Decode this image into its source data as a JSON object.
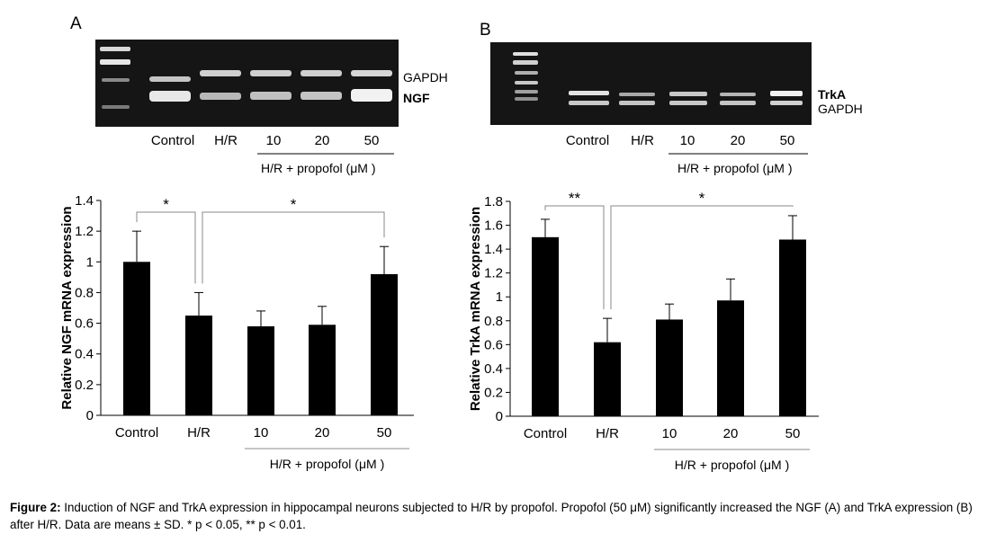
{
  "panels": [
    {
      "letter": "A",
      "gel": {
        "lanes": [
          "Control",
          "H/R",
          "10",
          "20",
          "50"
        ],
        "group_label": "H/R + propofol (μM  )",
        "bands": [
          {
            "label": "GAPDH",
            "bold": false
          },
          {
            "label": "NGF",
            "bold": true
          }
        ]
      },
      "chart_data": {
        "type": "bar",
        "categories": [
          "Control",
          "H/R",
          "10",
          "20",
          "50"
        ],
        "values": [
          1.0,
          0.65,
          0.58,
          0.59,
          0.92
        ],
        "errors": [
          0.2,
          0.15,
          0.1,
          0.12,
          0.18
        ],
        "ylabel": "Relative NGF mRNA expression",
        "ylim": [
          0,
          1.4
        ],
        "yticks": [
          "0",
          "0.2",
          "0.4",
          "0.6",
          "0.8",
          "1",
          "1.2",
          "1.4"
        ],
        "group_label": "H/R + propofol (μM )",
        "significance": [
          {
            "from": "Control",
            "to": "H/R",
            "label": "*"
          },
          {
            "from": "H/R",
            "to": "50",
            "label": "*"
          }
        ]
      }
    },
    {
      "letter": "B",
      "gel": {
        "lanes": [
          "Control",
          "H/R",
          "10",
          "20",
          "50"
        ],
        "group_label": "H/R + propofol (μM  )",
        "bands": [
          {
            "label": "TrkA",
            "bold": true
          },
          {
            "label": "GAPDH",
            "bold": false
          }
        ]
      },
      "chart_data": {
        "type": "bar",
        "categories": [
          "Control",
          "H/R",
          "10",
          "20",
          "50"
        ],
        "values": [
          1.5,
          0.62,
          0.81,
          0.97,
          1.48
        ],
        "errors": [
          0.15,
          0.2,
          0.13,
          0.18,
          0.2
        ],
        "ylabel": "Relative TrkA mRNA expression",
        "ylim": [
          0,
          1.8
        ],
        "yticks": [
          "0",
          "0.2",
          "0.4",
          "0.6",
          "0.8",
          "1",
          "1.2",
          "1.4",
          "1.6",
          "1.8"
        ],
        "group_label": "H/R + propofol (μM )",
        "significance": [
          {
            "from": "Control",
            "to": "H/R",
            "label": "**"
          },
          {
            "from": "H/R",
            "to": "50",
            "label": "*"
          }
        ]
      }
    }
  ],
  "caption": {
    "label": "Figure 2:",
    "text": " Induction of NGF and TrkA expression in hippocampal neurons subjected to H/R by propofol. Propofol (50 μM) significantly increased the NGF (A) and TrkA expression (B) after H/R. Data are means ± SD.  * p < 0.05, ** p < 0.01."
  }
}
